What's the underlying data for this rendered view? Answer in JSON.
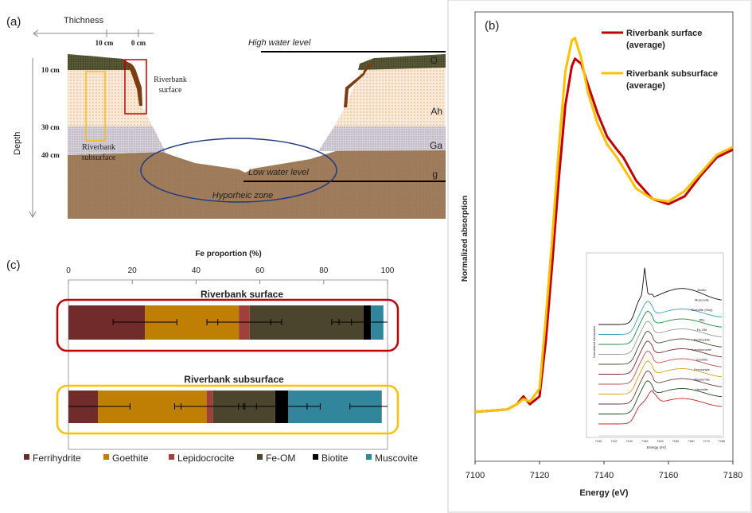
{
  "panel_a": {
    "label": "(a)",
    "thickness_label": "Thichness",
    "thickness_ticks": [
      "10 cm",
      "0 cm"
    ],
    "depth_label": "Depth",
    "depth_ticks": [
      "10 cm",
      "30 cm",
      "40 cm"
    ],
    "horizons": [
      "O",
      "Ah",
      "Ga",
      "g"
    ],
    "high_water": "High water level",
    "low_water": "Low water level",
    "hyporheic": "Hyporheic zone",
    "surface_label": [
      "Riverbank",
      "surface"
    ],
    "subsurface_label": [
      "Riverbank",
      "subsurface"
    ],
    "colors": {
      "O": "#4a4a2c",
      "Ah": "#f6dcc4",
      "Ga": "#c9c5cf",
      "g": "#a07e5c",
      "roots": "#7a3e12",
      "surface_box": "#c00000",
      "subsurface_box": "#ffc000",
      "hyporheic": "#1f3a80"
    }
  },
  "chart_data": [
    {
      "panel": "(b)",
      "type": "line",
      "xlabel": "Energy (eV)",
      "ylabel": "Normalized absorption",
      "xlim": [
        7100,
        7180
      ],
      "ylim": [
        -0.19,
        1.54
      ],
      "xticks": [
        "7100",
        "7120",
        "7140",
        "7160",
        "7180"
      ],
      "legend_position": "top-right",
      "x": [
        7100,
        7110,
        7113,
        7115,
        7117,
        7120,
        7122,
        7124,
        7126,
        7128,
        7130,
        7131,
        7133,
        7135,
        7138,
        7141,
        7144,
        7146,
        7150,
        7155,
        7160,
        7165,
        7170,
        7175,
        7180
      ],
      "series": [
        {
          "name": "Riverbank surface (average)",
          "name_lines": [
            "Riverbank surface",
            "(average)"
          ],
          "color": "#c00000",
          "values": [
            0,
            0.01,
            0.03,
            0.06,
            0.03,
            0.06,
            0.28,
            0.58,
            0.9,
            1.18,
            1.33,
            1.36,
            1.34,
            1.26,
            1.15,
            1.06,
            1.01,
            0.98,
            0.89,
            0.82,
            0.8,
            0.83,
            0.91,
            0.98,
            1.01
          ]
        },
        {
          "name": "Riverbank subsurface (average)",
          "name_lines": [
            "Riverbank subsurface",
            "(average)"
          ],
          "color": "#ffc000",
          "values": [
            0,
            0.01,
            0.03,
            0.05,
            0.04,
            0.09,
            0.37,
            0.68,
            1.02,
            1.31,
            1.43,
            1.44,
            1.36,
            1.23,
            1.11,
            1.03,
            0.98,
            0.94,
            0.86,
            0.82,
            0.81,
            0.85,
            0.92,
            0.99,
            1.02
          ]
        }
      ],
      "inset": {
        "xlabel": "Energy (eV)",
        "ylabel": "Normalized Absorption",
        "xticks": [
          "7100",
          "7110",
          "7120",
          "7130",
          "7140",
          "7150",
          "7160",
          "7170",
          "7180"
        ],
        "references": [
          {
            "name": "Biotite",
            "color": "#111111"
          },
          {
            "name": "Muscovite",
            "color": "#3a9ec0"
          },
          {
            "name": "Smectite (Swy)",
            "color": "#1e8a3e"
          },
          {
            "name": "Illite",
            "color": "#999999"
          },
          {
            "name": "Fe-OM",
            "color": "#4a4a2c"
          },
          {
            "name": "Ferrihydrite",
            "color": "#7a2a2a"
          },
          {
            "name": "Lepidocrocite",
            "color": "#c0504d"
          },
          {
            "name": "Goethite",
            "color": "#d4a017"
          },
          {
            "name": "Feroxyhyte",
            "color": "#6e3a3a"
          },
          {
            "name": "Maghemite",
            "color": "#1e4a1e"
          },
          {
            "name": "Hematite",
            "color": "#d02020"
          }
        ]
      }
    },
    {
      "panel": "(c)",
      "type": "bar",
      "orientation": "horizontal-stacked",
      "title": "Fe proportion (%)",
      "xlim": [
        0,
        100
      ],
      "xticks": [
        "0",
        "20",
        "40",
        "60",
        "80",
        "100"
      ],
      "categories": [
        "Riverbank surface",
        "Riverbank subsurface"
      ],
      "error_bars": "±10 at each cumulative segment end",
      "series": [
        {
          "name": "Ferrihydrite",
          "color": "#722b2b",
          "values": [
            24.0,
            9.3
          ]
        },
        {
          "name": "Goethite",
          "color": "#bf7f05",
          "values": [
            29.4,
            34.0
          ]
        },
        {
          "name": "Lepidocrocite",
          "color": "#a0403a",
          "values": [
            3.4,
            2.0
          ]
        },
        {
          "name": "Fe-OM",
          "color": "#4a452c",
          "values": [
            35.7,
            19.5
          ]
        },
        {
          "name": "Biotite",
          "color": "#000000",
          "values": [
            2.3,
            4.1
          ]
        },
        {
          "name": "Muscovite",
          "color": "#31869b",
          "values": [
            3.9,
            29.3
          ]
        }
      ],
      "error": [
        10,
        10
      ],
      "outline_colors": [
        "#c00000",
        "#ffc000"
      ],
      "legend_position": "bottom"
    }
  ]
}
